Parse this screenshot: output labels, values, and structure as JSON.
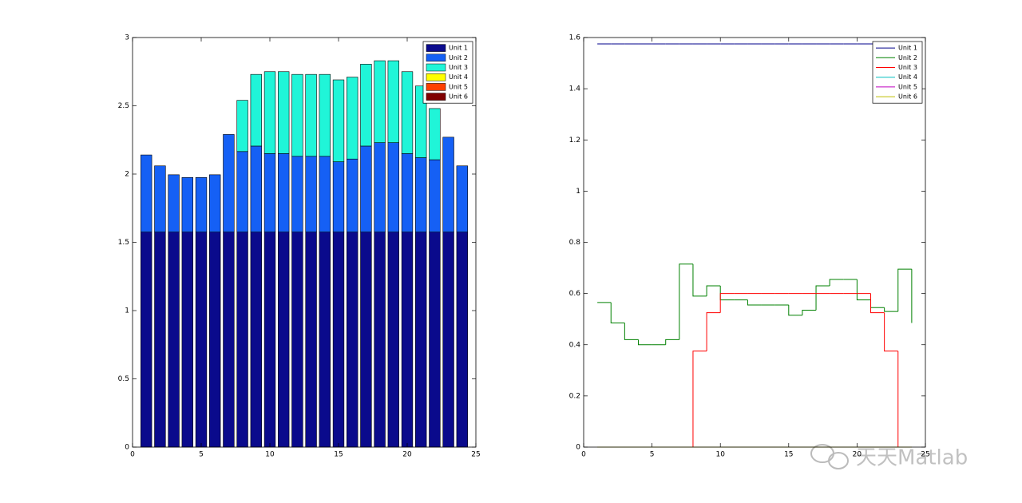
{
  "chart_data": [
    {
      "type": "stacked-bar",
      "x": [
        1,
        2,
        3,
        4,
        5,
        6,
        7,
        8,
        9,
        10,
        11,
        12,
        13,
        14,
        15,
        16,
        17,
        18,
        19,
        20,
        21,
        22,
        23,
        24
      ],
      "series": [
        {
          "name": "Unit 1",
          "color": "#0a0a8c",
          "values": [
            1.575,
            1.575,
            1.575,
            1.575,
            1.575,
            1.575,
            1.575,
            1.575,
            1.575,
            1.575,
            1.575,
            1.575,
            1.575,
            1.575,
            1.575,
            1.575,
            1.575,
            1.575,
            1.575,
            1.575,
            1.575,
            1.575,
            1.575,
            1.575
          ]
        },
        {
          "name": "Unit 2",
          "color": "#1560f5",
          "values": [
            0.565,
            0.485,
            0.42,
            0.4,
            0.4,
            0.42,
            0.715,
            0.59,
            0.63,
            0.575,
            0.575,
            0.555,
            0.555,
            0.555,
            0.515,
            0.535,
            0.63,
            0.655,
            0.655,
            0.575,
            0.545,
            0.53,
            0.695,
            0.485
          ]
        },
        {
          "name": "Unit 3",
          "color": "#20f5d8",
          "values": [
            0,
            0,
            0,
            0,
            0,
            0,
            0,
            0.375,
            0.525,
            0.6,
            0.6,
            0.6,
            0.6,
            0.6,
            0.6,
            0.6,
            0.6,
            0.6,
            0.6,
            0.6,
            0.525,
            0.375,
            0,
            0
          ]
        },
        {
          "name": "Unit 4",
          "color": "#ffff00",
          "values": [
            0,
            0,
            0,
            0,
            0,
            0,
            0,
            0,
            0,
            0,
            0,
            0,
            0,
            0,
            0,
            0,
            0,
            0,
            0,
            0,
            0,
            0,
            0,
            0
          ]
        },
        {
          "name": "Unit 5",
          "color": "#ff4000",
          "values": [
            0,
            0,
            0,
            0,
            0,
            0,
            0,
            0,
            0,
            0,
            0,
            0,
            0,
            0,
            0,
            0,
            0,
            0,
            0,
            0,
            0,
            0,
            0,
            0
          ]
        },
        {
          "name": "Unit 6",
          "color": "#800000",
          "values": [
            0,
            0,
            0,
            0,
            0,
            0,
            0,
            0,
            0,
            0,
            0,
            0,
            0,
            0,
            0,
            0,
            0,
            0,
            0,
            0,
            0,
            0,
            0,
            0
          ]
        }
      ],
      "xlim": [
        0,
        25
      ],
      "xticks": [
        0,
        5,
        10,
        15,
        20,
        25
      ],
      "ylim": [
        0,
        3
      ],
      "yticks": [
        0,
        0.5,
        1,
        1.5,
        2,
        2.5,
        3
      ],
      "legend": "upper right"
    },
    {
      "type": "stairs",
      "x": [
        1,
        2,
        3,
        4,
        5,
        6,
        7,
        8,
        9,
        10,
        11,
        12,
        13,
        14,
        15,
        16,
        17,
        18,
        19,
        20,
        21,
        22,
        23,
        24
      ],
      "series": [
        {
          "name": "Unit 1",
          "color": "#00008b",
          "values": [
            1.575,
            1.575,
            1.575,
            1.575,
            1.575,
            1.575,
            1.575,
            1.575,
            1.575,
            1.575,
            1.575,
            1.575,
            1.575,
            1.575,
            1.575,
            1.575,
            1.575,
            1.575,
            1.575,
            1.575,
            1.575,
            1.575,
            1.575,
            1.575
          ]
        },
        {
          "name": "Unit 2",
          "color": "#008000",
          "values": [
            0.565,
            0.485,
            0.42,
            0.4,
            0.4,
            0.42,
            0.715,
            0.59,
            0.63,
            0.575,
            0.575,
            0.555,
            0.555,
            0.555,
            0.515,
            0.535,
            0.63,
            0.655,
            0.655,
            0.575,
            0.545,
            0.53,
            0.695,
            0.485
          ]
        },
        {
          "name": "Unit 3",
          "color": "#ff0000",
          "values": [
            0,
            0,
            0,
            0,
            0,
            0,
            0,
            0.375,
            0.525,
            0.6,
            0.6,
            0.6,
            0.6,
            0.6,
            0.6,
            0.6,
            0.6,
            0.6,
            0.6,
            0.6,
            0.525,
            0.375,
            0,
            0
          ]
        },
        {
          "name": "Unit 4",
          "color": "#00bfbf",
          "values": [
            0,
            0,
            0,
            0,
            0,
            0,
            0,
            0,
            0,
            0,
            0,
            0,
            0,
            0,
            0,
            0,
            0,
            0,
            0,
            0,
            0,
            0,
            0,
            0
          ]
        },
        {
          "name": "Unit 5",
          "color": "#bf00bf",
          "values": [
            0,
            0,
            0,
            0,
            0,
            0,
            0,
            0,
            0,
            0,
            0,
            0,
            0,
            0,
            0,
            0,
            0,
            0,
            0,
            0,
            0,
            0,
            0,
            0
          ]
        },
        {
          "name": "Unit 6",
          "color": "#bfbf00",
          "values": [
            0,
            0,
            0,
            0,
            0,
            0,
            0,
            0,
            0,
            0,
            0,
            0,
            0,
            0,
            0,
            0,
            0,
            0,
            0,
            0,
            0,
            0,
            0,
            0
          ]
        }
      ],
      "xlim": [
        0,
        25
      ],
      "xticks": [
        0,
        5,
        10,
        15,
        20,
        25
      ],
      "ylim": [
        0,
        1.6
      ],
      "yticks": [
        0,
        0.2,
        0.4,
        0.6,
        0.8,
        1,
        1.2,
        1.4,
        1.6
      ],
      "legend": "upper right"
    }
  ],
  "watermark": "天天Matlab"
}
